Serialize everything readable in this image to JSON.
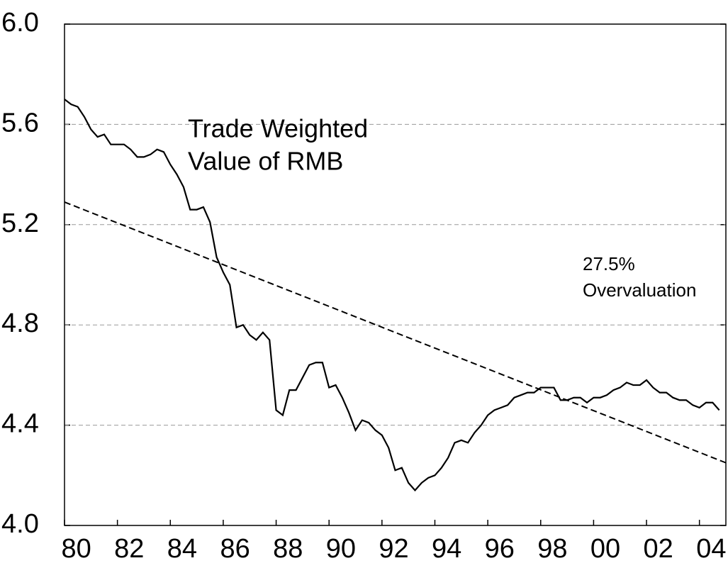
{
  "chart_data": {
    "type": "line",
    "annotations": [
      [
        "Trade Weighted",
        "Value of RMB"
      ],
      [
        "27.5%",
        "Overvaluation"
      ]
    ],
    "series": [
      {
        "color": "#000000",
        "dashed": false,
        "x": [
          1980,
          1980.25,
          1980.5,
          1980.75,
          1981,
          1981.25,
          1981.5,
          1981.75,
          1982,
          1982.25,
          1982.5,
          1982.75,
          1983,
          1983.25,
          1983.5,
          1983.75,
          1984,
          1984.25,
          1984.5,
          1984.75,
          1985,
          1985.25,
          1985.5,
          1985.75,
          1986,
          1986.25,
          1986.5,
          1986.75,
          1987,
          1987.25,
          1987.5,
          1987.75,
          1988,
          1988.25,
          1988.5,
          1988.75,
          1989,
          1989.25,
          1989.5,
          1989.75,
          1990,
          1990.25,
          1990.5,
          1990.75,
          1991,
          1991.25,
          1991.5,
          1991.75,
          1992,
          1992.25,
          1992.5,
          1992.75,
          1993,
          1993.25,
          1993.5,
          1993.75,
          1994,
          1994.25,
          1994.5,
          1994.75,
          1995,
          1995.25,
          1995.5,
          1995.75,
          1996,
          1996.25,
          1996.5,
          1996.75,
          1997,
          1997.25,
          1997.5,
          1997.75,
          1998,
          1998.25,
          1998.5,
          1998.75,
          1999,
          1999.25,
          1999.5,
          1999.75,
          2000,
          2000.25,
          2000.5,
          2000.75,
          2001,
          2001.25,
          2001.5,
          2001.75,
          2002,
          2002.25,
          2002.5,
          2002.75,
          2003,
          2003.25,
          2003.5,
          2003.75,
          2004,
          2004.25,
          2004.5,
          2004.75
        ],
        "values": [
          5.7,
          5.68,
          5.67,
          5.63,
          5.58,
          5.55,
          5.56,
          5.52,
          5.52,
          5.52,
          5.5,
          5.47,
          5.47,
          5.48,
          5.5,
          5.49,
          5.44,
          5.4,
          5.35,
          5.26,
          5.26,
          5.27,
          5.21,
          5.07,
          5.01,
          4.96,
          4.79,
          4.8,
          4.76,
          4.74,
          4.77,
          4.74,
          4.46,
          4.44,
          4.54,
          4.54,
          4.59,
          4.64,
          4.65,
          4.65,
          4.55,
          4.56,
          4.51,
          4.45,
          4.38,
          4.42,
          4.41,
          4.38,
          4.36,
          4.31,
          4.22,
          4.23,
          4.17,
          4.14,
          4.17,
          4.19,
          4.2,
          4.23,
          4.27,
          4.33,
          4.34,
          4.33,
          4.37,
          4.4,
          4.44,
          4.46,
          4.47,
          4.48,
          4.51,
          4.52,
          4.53,
          4.53,
          4.55,
          4.55,
          4.55,
          4.5,
          4.5,
          4.51,
          4.51,
          4.49,
          4.51,
          4.51,
          4.52,
          4.54,
          4.55,
          4.57,
          4.56,
          4.56,
          4.58,
          4.55,
          4.53,
          4.53,
          4.51,
          4.5,
          4.5,
          4.48,
          4.47,
          4.49,
          4.49,
          4.46
        ]
      },
      {
        "color": "#000000",
        "dashed": true,
        "x": [
          1980,
          2005
        ],
        "values": [
          5.29,
          4.25
        ]
      }
    ],
    "xlim": [
      1980,
      2005
    ],
    "xticks": [
      {
        "value": 1980,
        "label": "80"
      },
      {
        "value": 1982,
        "label": "82"
      },
      {
        "value": 1984,
        "label": "84"
      },
      {
        "value": 1986,
        "label": "86"
      },
      {
        "value": 1988,
        "label": "88"
      },
      {
        "value": 1990,
        "label": "90"
      },
      {
        "value": 1992,
        "label": "92"
      },
      {
        "value": 1994,
        "label": "94"
      },
      {
        "value": 1996,
        "label": "96"
      },
      {
        "value": 1998,
        "label": "98"
      },
      {
        "value": 2000,
        "label": "00"
      },
      {
        "value": 2002,
        "label": "02"
      },
      {
        "value": 2004,
        "label": "04"
      }
    ],
    "ylim": [
      4.0,
      6.0
    ],
    "yticks": [
      {
        "value": 4,
        "label": "4.0"
      },
      {
        "value": 4.4,
        "label": "4.4"
      },
      {
        "value": 4.8,
        "label": "4.8"
      },
      {
        "value": 5.2,
        "label": "5.2"
      },
      {
        "value": 5.6,
        "label": "5.6"
      },
      {
        "value": 6,
        "label": "6.0"
      }
    ],
    "grid": true
  }
}
